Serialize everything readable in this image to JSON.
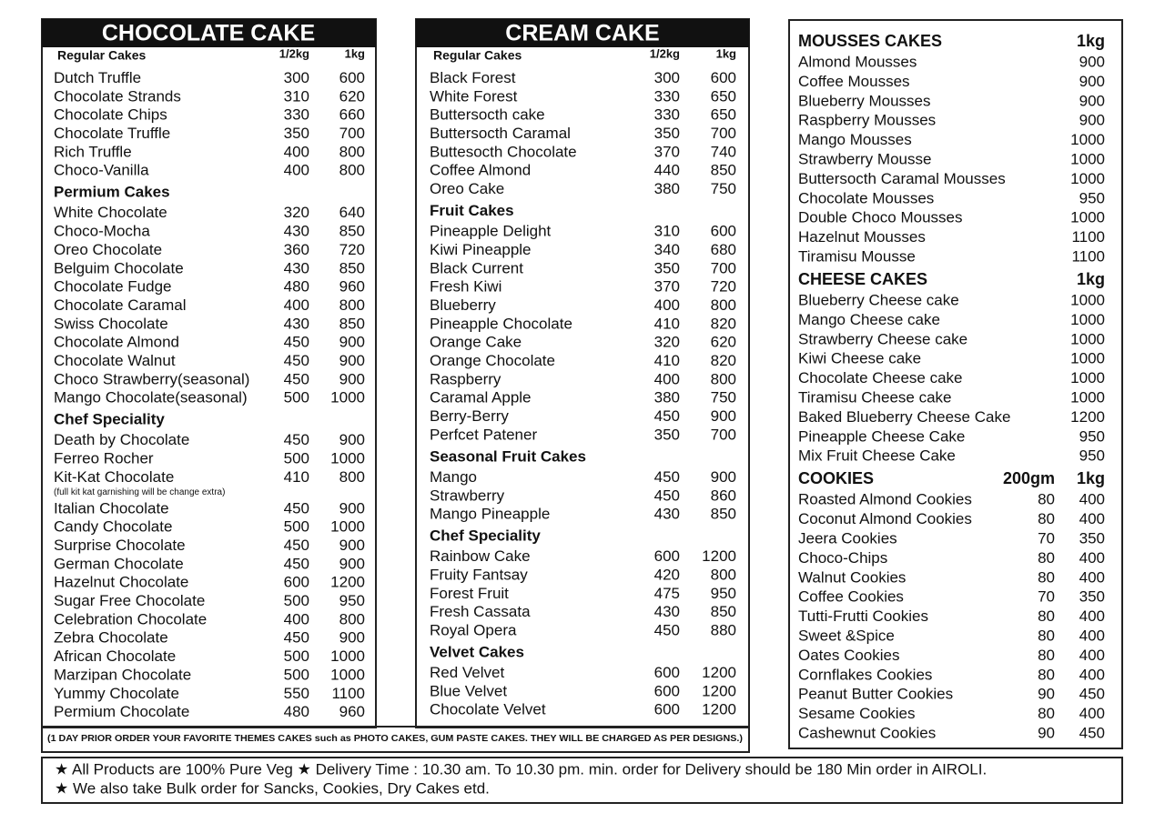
{
  "panels": [
    {
      "title": "CHOCOLATE CAKE",
      "sections": [
        {
          "heading": "Regular Cakes",
          "columns": [
            "1/2kg",
            "1kg"
          ],
          "items": [
            {
              "name": "Dutch Truffle",
              "prices": [
                300,
                600
              ]
            },
            {
              "name": "Chocolate Strands",
              "prices": [
                310,
                620
              ]
            },
            {
              "name": "Chocolate Chips",
              "prices": [
                330,
                660
              ]
            },
            {
              "name": "Chocolate Truffle",
              "prices": [
                350,
                700
              ]
            },
            {
              "name": "Rich  Truffle",
              "prices": [
                400,
                800
              ]
            },
            {
              "name": "Choco-Vanilla",
              "prices": [
                400,
                800
              ]
            }
          ]
        },
        {
          "heading": "Permium Cakes",
          "items": [
            {
              "name": "White Chocolate",
              "prices": [
                320,
                640
              ]
            },
            {
              "name": "Choco-Mocha",
              "prices": [
                430,
                850
              ]
            },
            {
              "name": "Oreo Chocolate",
              "prices": [
                360,
                720
              ]
            },
            {
              "name": "Belguim Chocolate",
              "prices": [
                430,
                850
              ]
            },
            {
              "name": "Chocolate Fudge",
              "prices": [
                480,
                960
              ]
            },
            {
              "name": "Chocolate Caramal",
              "prices": [
                400,
                800
              ]
            },
            {
              "name": "Swiss Chocolate",
              "prices": [
                430,
                850
              ]
            },
            {
              "name": "Chocolate Almond",
              "prices": [
                450,
                900
              ]
            },
            {
              "name": "Chocolate Walnut",
              "prices": [
                450,
                900
              ]
            },
            {
              "name": "Choco Strawberry(seasonal)",
              "prices": [
                450,
                900
              ]
            },
            {
              "name": "Mango Chocolate(seasonal)",
              "prices": [
                500,
                1000
              ]
            }
          ]
        },
        {
          "heading": "Chef Speciality",
          "items": [
            {
              "name": "Death by Chocolate",
              "prices": [
                450,
                900
              ]
            },
            {
              "name": "Ferreo Rocher",
              "prices": [
                500,
                1000
              ]
            },
            {
              "name": "Kit-Kat Chocolate",
              "prices": [
                410,
                800
              ],
              "note": "(full kit kat garnishing will be change extra)"
            },
            {
              "name": "Italian Chocolate",
              "prices": [
                450,
                900
              ]
            },
            {
              "name": "Candy Chocolate",
              "prices": [
                500,
                1000
              ]
            },
            {
              "name": "Surprise Chocolate",
              "prices": [
                450,
                900
              ]
            },
            {
              "name": "German Chocolate",
              "prices": [
                450,
                900
              ]
            },
            {
              "name": "Hazelnut Chocolate",
              "prices": [
                600,
                1200
              ]
            },
            {
              "name": "Sugar Free Chocolate",
              "prices": [
                500,
                950
              ]
            },
            {
              "name": "Celebration Chocolate",
              "prices": [
                400,
                800
              ]
            },
            {
              "name": "Zebra Chocolate",
              "prices": [
                450,
                900
              ]
            },
            {
              "name": "African Chocolate",
              "prices": [
                500,
                1000
              ]
            },
            {
              "name": "Marzipan Chocolate",
              "prices": [
                500,
                1000
              ]
            },
            {
              "name": "Yummy Chocolate",
              "prices": [
                550,
                1100
              ]
            },
            {
              "name": "Permium Chocolate",
              "prices": [
                480,
                960
              ]
            }
          ]
        }
      ]
    },
    {
      "title": "CREAM CAKE",
      "sections": [
        {
          "heading": "Regular Cakes",
          "columns": [
            "1/2kg",
            "1kg"
          ],
          "items": [
            {
              "name": "Black Forest",
              "prices": [
                300,
                600
              ]
            },
            {
              "name": "White Forest",
              "prices": [
                330,
                650
              ]
            },
            {
              "name": "Buttersocth cake",
              "prices": [
                330,
                650
              ]
            },
            {
              "name": "Buttersocth Caramal",
              "prices": [
                350,
                700
              ]
            },
            {
              "name": "Buttesocth Chocolate",
              "prices": [
                370,
                740
              ]
            },
            {
              "name": "Coffee Almond",
              "prices": [
                440,
                850
              ]
            },
            {
              "name": "Oreo Cake",
              "prices": [
                380,
                750
              ]
            }
          ]
        },
        {
          "heading": "Fruit Cakes",
          "items": [
            {
              "name": "Pineapple Delight",
              "prices": [
                310,
                600
              ]
            },
            {
              "name": "Kiwi Pineapple",
              "prices": [
                340,
                680
              ]
            },
            {
              "name": "Black Current",
              "prices": [
                350,
                700
              ]
            },
            {
              "name": "Fresh Kiwi",
              "prices": [
                370,
                720
              ]
            },
            {
              "name": "Blueberry",
              "prices": [
                400,
                800
              ]
            },
            {
              "name": "Pineapple Chocolate",
              "prices": [
                410,
                820
              ]
            },
            {
              "name": "Orange Cake",
              "prices": [
                320,
                620
              ]
            },
            {
              "name": "Orange Chocolate",
              "prices": [
                410,
                820
              ]
            },
            {
              "name": "Raspberry",
              "prices": [
                400,
                800
              ]
            },
            {
              "name": "Caramal Apple",
              "prices": [
                380,
                750
              ]
            },
            {
              "name": "Berry-Berry",
              "prices": [
                450,
                900
              ]
            },
            {
              "name": "Perfcet Patener",
              "prices": [
                350,
                700
              ]
            }
          ]
        },
        {
          "heading": "Seasonal Fruit Cakes",
          "items": [
            {
              "name": "Mango",
              "prices": [
                450,
                900
              ]
            },
            {
              "name": "Strawberry",
              "prices": [
                450,
                860
              ]
            },
            {
              "name": "Mango Pineapple",
              "prices": [
                430,
                850
              ]
            }
          ]
        },
        {
          "heading": "Chef  Speciality",
          "items": [
            {
              "name": "Rainbow Cake",
              "prices": [
                600,
                1200
              ]
            },
            {
              "name": "Fruity Fantsay",
              "prices": [
                420,
                800
              ]
            },
            {
              "name": "Forest Fruit",
              "prices": [
                475,
                950
              ]
            },
            {
              "name": "Fresh Cassata",
              "prices": [
                430,
                850
              ]
            },
            {
              "name": "Royal Opera",
              "prices": [
                450,
                880
              ]
            }
          ]
        },
        {
          "heading": "Velvet Cakes",
          "items": [
            {
              "name": "Red Velvet",
              "prices": [
                600,
                1200
              ]
            },
            {
              "name": "Blue Velvet",
              "prices": [
                600,
                1200
              ]
            },
            {
              "name": "Chocolate Velvet",
              "prices": [
                600,
                1200
              ]
            }
          ]
        }
      ]
    },
    {
      "sections": [
        {
          "heading": "MOUSSES CAKES",
          "columns": [
            "1kg"
          ],
          "items": [
            {
              "name": "Almond Mousses",
              "prices": [
                900
              ]
            },
            {
              "name": "Coffee Mousses",
              "prices": [
                900
              ]
            },
            {
              "name": "Blueberry Mousses",
              "prices": [
                900
              ]
            },
            {
              "name": "Raspberry Mousses",
              "prices": [
                900
              ]
            },
            {
              "name": "Mango Mousses",
              "prices": [
                1000
              ]
            },
            {
              "name": "Strawberry Mousse",
              "prices": [
                1000
              ]
            },
            {
              "name": "Buttersocth Caramal Mousses",
              "prices": [
                1000
              ]
            },
            {
              "name": "Chocolate Mousses",
              "prices": [
                950
              ]
            },
            {
              "name": "Double Choco Mousses",
              "prices": [
                1000
              ]
            },
            {
              "name": "Hazelnut Mousses",
              "prices": [
                1100
              ]
            },
            {
              "name": "Tiramisu Mousse",
              "prices": [
                1100
              ]
            }
          ]
        },
        {
          "heading": "CHEESE CAKES",
          "columns": [
            "1kg"
          ],
          "items": [
            {
              "name": "Blueberry Cheese cake",
              "prices": [
                1000
              ]
            },
            {
              "name": "Mango Cheese cake",
              "prices": [
                1000
              ]
            },
            {
              "name": "Strawberry Cheese cake",
              "prices": [
                1000
              ]
            },
            {
              "name": "Kiwi Cheese cake",
              "prices": [
                1000
              ]
            },
            {
              "name": "Chocolate Cheese cake",
              "prices": [
                1000
              ]
            },
            {
              "name": "Tiramisu Cheese cake",
              "prices": [
                1000
              ]
            },
            {
              "name": "Baked Blueberry Cheese Cake",
              "prices": [
                1200
              ]
            },
            {
              "name": "Pineapple Cheese Cake",
              "prices": [
                950
              ]
            },
            {
              "name": "Mix Fruit Cheese Cake",
              "prices": [
                950
              ]
            }
          ]
        },
        {
          "heading": "COOKIES",
          "columns": [
            "200gm",
            "1kg"
          ],
          "items": [
            {
              "name": "Roasted Almond Cookies",
              "prices": [
                80,
                400
              ]
            },
            {
              "name": "Coconut Almond Cookies",
              "prices": [
                80,
                400
              ]
            },
            {
              "name": "Jeera Cookies",
              "prices": [
                70,
                350
              ]
            },
            {
              "name": "Choco-Chips",
              "prices": [
                80,
                400
              ]
            },
            {
              "name": "Walnut Cookies",
              "prices": [
                80,
                400
              ]
            },
            {
              "name": "Coffee Cookies",
              "prices": [
                70,
                350
              ]
            },
            {
              "name": "Tutti-Frutti Cookies",
              "prices": [
                80,
                400
              ]
            },
            {
              "name": "Sweet &Spice",
              "prices": [
                80,
                400
              ]
            },
            {
              "name": "Oates Cookies",
              "prices": [
                80,
                400
              ]
            },
            {
              "name": "Cornflakes Cookies",
              "prices": [
                80,
                400
              ]
            },
            {
              "name": "Peanut Butter Cookies",
              "prices": [
                90,
                450
              ]
            },
            {
              "name": "Sesame Cookies",
              "prices": [
                80,
                400
              ]
            },
            {
              "name": "Cashewnut Cookies",
              "prices": [
                90,
                450
              ]
            }
          ]
        }
      ]
    }
  ],
  "notice": "(1 DAY PRIOR ORDER YOUR FAVORITE THEMES CAKES such as PHOTO CAKES, GUM PASTE CAKES. THEY WILL BE CHARGED AS PER DESIGNS.)",
  "footer": [
    "★ All Products are 100% Pure Veg  ★ Delivery Time : 10.30 am. To 10.30 pm. min. order for Delivery should be 180 Min order in AIROLI.",
    "★ We also take Bulk order for Sancks, Cookies, Dry Cakes etd."
  ]
}
